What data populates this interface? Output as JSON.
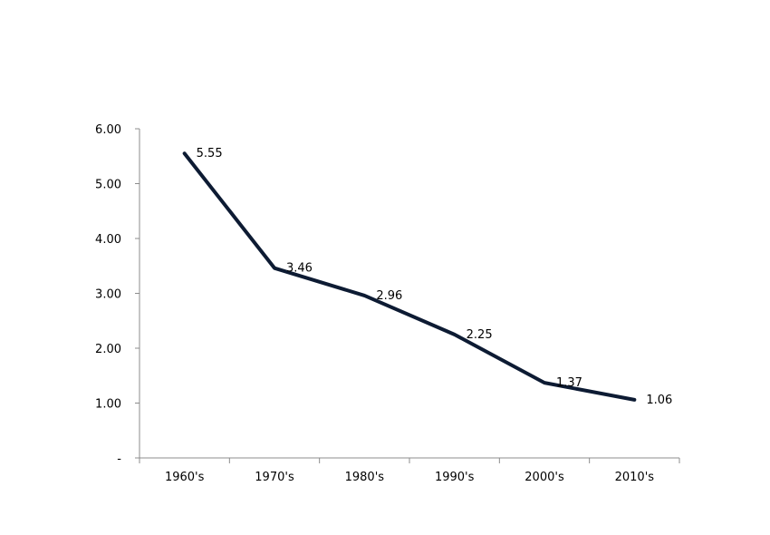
{
  "chart_data": {
    "type": "line",
    "title": "",
    "xlabel": "",
    "ylabel": "",
    "categories": [
      "1960's",
      "1970's",
      "1980's",
      "1990's",
      "2000's",
      "2010's"
    ],
    "series": [
      {
        "values": [
          5.55,
          3.46,
          2.96,
          2.25,
          1.37,
          1.06
        ],
        "data_labels": [
          "5.55",
          "3.46",
          "2.96",
          "2.25",
          "1.37",
          "1.06"
        ],
        "color": "#0d1b33"
      }
    ],
    "y_ticks": [
      0,
      1,
      2,
      3,
      4,
      5,
      6
    ],
    "y_tick_labels": [
      "-",
      "1.00",
      "2.00",
      "3.00",
      "4.00",
      "5.00",
      "6.00"
    ],
    "ylim": [
      0,
      6
    ],
    "grid": false,
    "legend": "none",
    "axis_color": "#8c8c8c"
  }
}
